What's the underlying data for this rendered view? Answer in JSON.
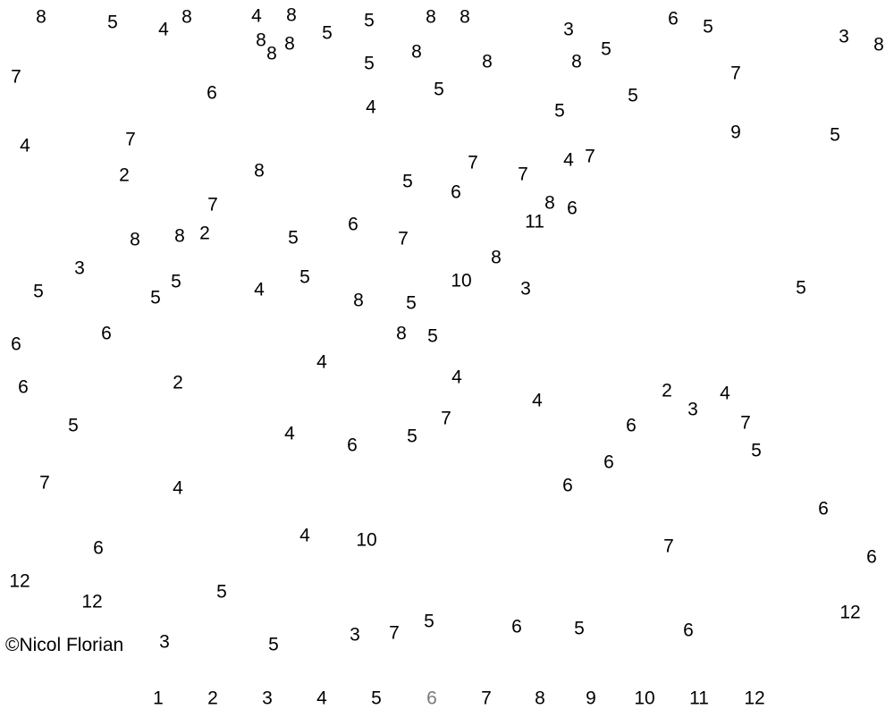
{
  "puzzle": {
    "numbers": [
      "8",
      "5",
      "4",
      "8",
      "4",
      "8",
      "5",
      "5",
      "8",
      "8",
      "3",
      "6",
      "5",
      "3",
      "8",
      "8",
      "8",
      "8",
      "5",
      "8",
      "8",
      "8",
      "5",
      "7",
      "6",
      "7",
      "5",
      "5",
      "5",
      "4",
      "7",
      "4",
      "5",
      "9",
      "2",
      "8",
      "7",
      "4",
      "7",
      "5",
      "6",
      "7",
      "7",
      "8",
      "6",
      "11",
      "8",
      "8",
      "2",
      "5",
      "6",
      "7",
      "8",
      "3",
      "5",
      "5",
      "5",
      "4",
      "5",
      "8",
      "5",
      "10",
      "3",
      "5",
      "6",
      "6",
      "8",
      "5",
      "4",
      "6",
      "2",
      "4",
      "4",
      "2",
      "4",
      "3",
      "7",
      "5",
      "6",
      "5",
      "4",
      "6",
      "5",
      "7",
      "6",
      "7",
      "4",
      "6",
      "6",
      "4",
      "10",
      "6",
      "7",
      "6",
      "12",
      "12",
      "5",
      "12",
      "3",
      "5",
      "7",
      "3",
      "5",
      "6",
      "5",
      "6"
    ]
  },
  "legend": {
    "numbers": [
      "1",
      "2",
      "3",
      "4",
      "5",
      "6",
      "7",
      "8",
      "9",
      "10",
      "11",
      "12"
    ]
  },
  "credit": "©Nicol   Florian",
  "colors": {
    "background": "#ffffff",
    "text": "#000000",
    "legend_highlight": "#7a7a7a"
  }
}
